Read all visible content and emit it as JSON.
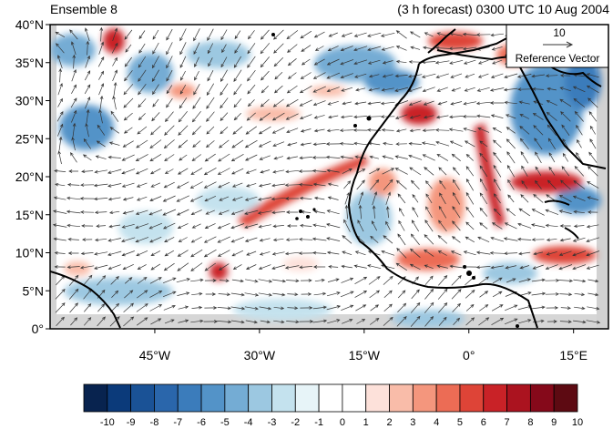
{
  "header": {
    "left_title": "Ensemble 8",
    "right_title": "(3 h forecast) 0300 UTC 10 Aug 2004"
  },
  "map": {
    "lon_range": [
      -60,
      20
    ],
    "lat_range": [
      0,
      40
    ],
    "lat_ticks": [
      {
        "lat": 40,
        "label": "40°N"
      },
      {
        "lat": 35,
        "label": "35°N"
      },
      {
        "lat": 30,
        "label": "30°N"
      },
      {
        "lat": 25,
        "label": "25°N"
      },
      {
        "lat": 20,
        "label": "20°N"
      },
      {
        "lat": 15,
        "label": "15°N"
      },
      {
        "lat": 10,
        "label": "10°N"
      },
      {
        "lat": 5,
        "label": "5°N"
      },
      {
        "lat": 0,
        "label": "0°"
      }
    ],
    "lon_ticks": [
      {
        "lon": -45,
        "label": "45°W"
      },
      {
        "lon": -30,
        "label": "30°W"
      },
      {
        "lon": -15,
        "label": "15°W"
      },
      {
        "lon": 0,
        "label": "0°"
      },
      {
        "lon": 15,
        "label": "15°E"
      }
    ]
  },
  "reference_vector": {
    "value": "10",
    "label": "Reference Vector"
  },
  "colorbar": {
    "labels": [
      "-10",
      "-9",
      "-8",
      "-7",
      "-6",
      "-5",
      "-4",
      "-3",
      "-2",
      "-1",
      "0",
      "1",
      "2",
      "3",
      "4",
      "5",
      "6",
      "7",
      "8",
      "9",
      "10"
    ],
    "colors": [
      "#08234f",
      "#0b3a7a",
      "#1a5296",
      "#2a66ab",
      "#3b7cbb",
      "#5393c8",
      "#74acd4",
      "#9cc8e1",
      "#c4e2ee",
      "#e7f4f8",
      "#ffffff",
      "#ffffff",
      "#fde1da",
      "#f9bca9",
      "#f4967d",
      "#ec6c55",
      "#de4437",
      "#c92227",
      "#ab131f",
      "#85091a",
      "#5d0a12"
    ]
  },
  "colors": {
    "land_gray": "#d2d2d2",
    "coastline": "#000000",
    "arrow": "#333333"
  }
}
